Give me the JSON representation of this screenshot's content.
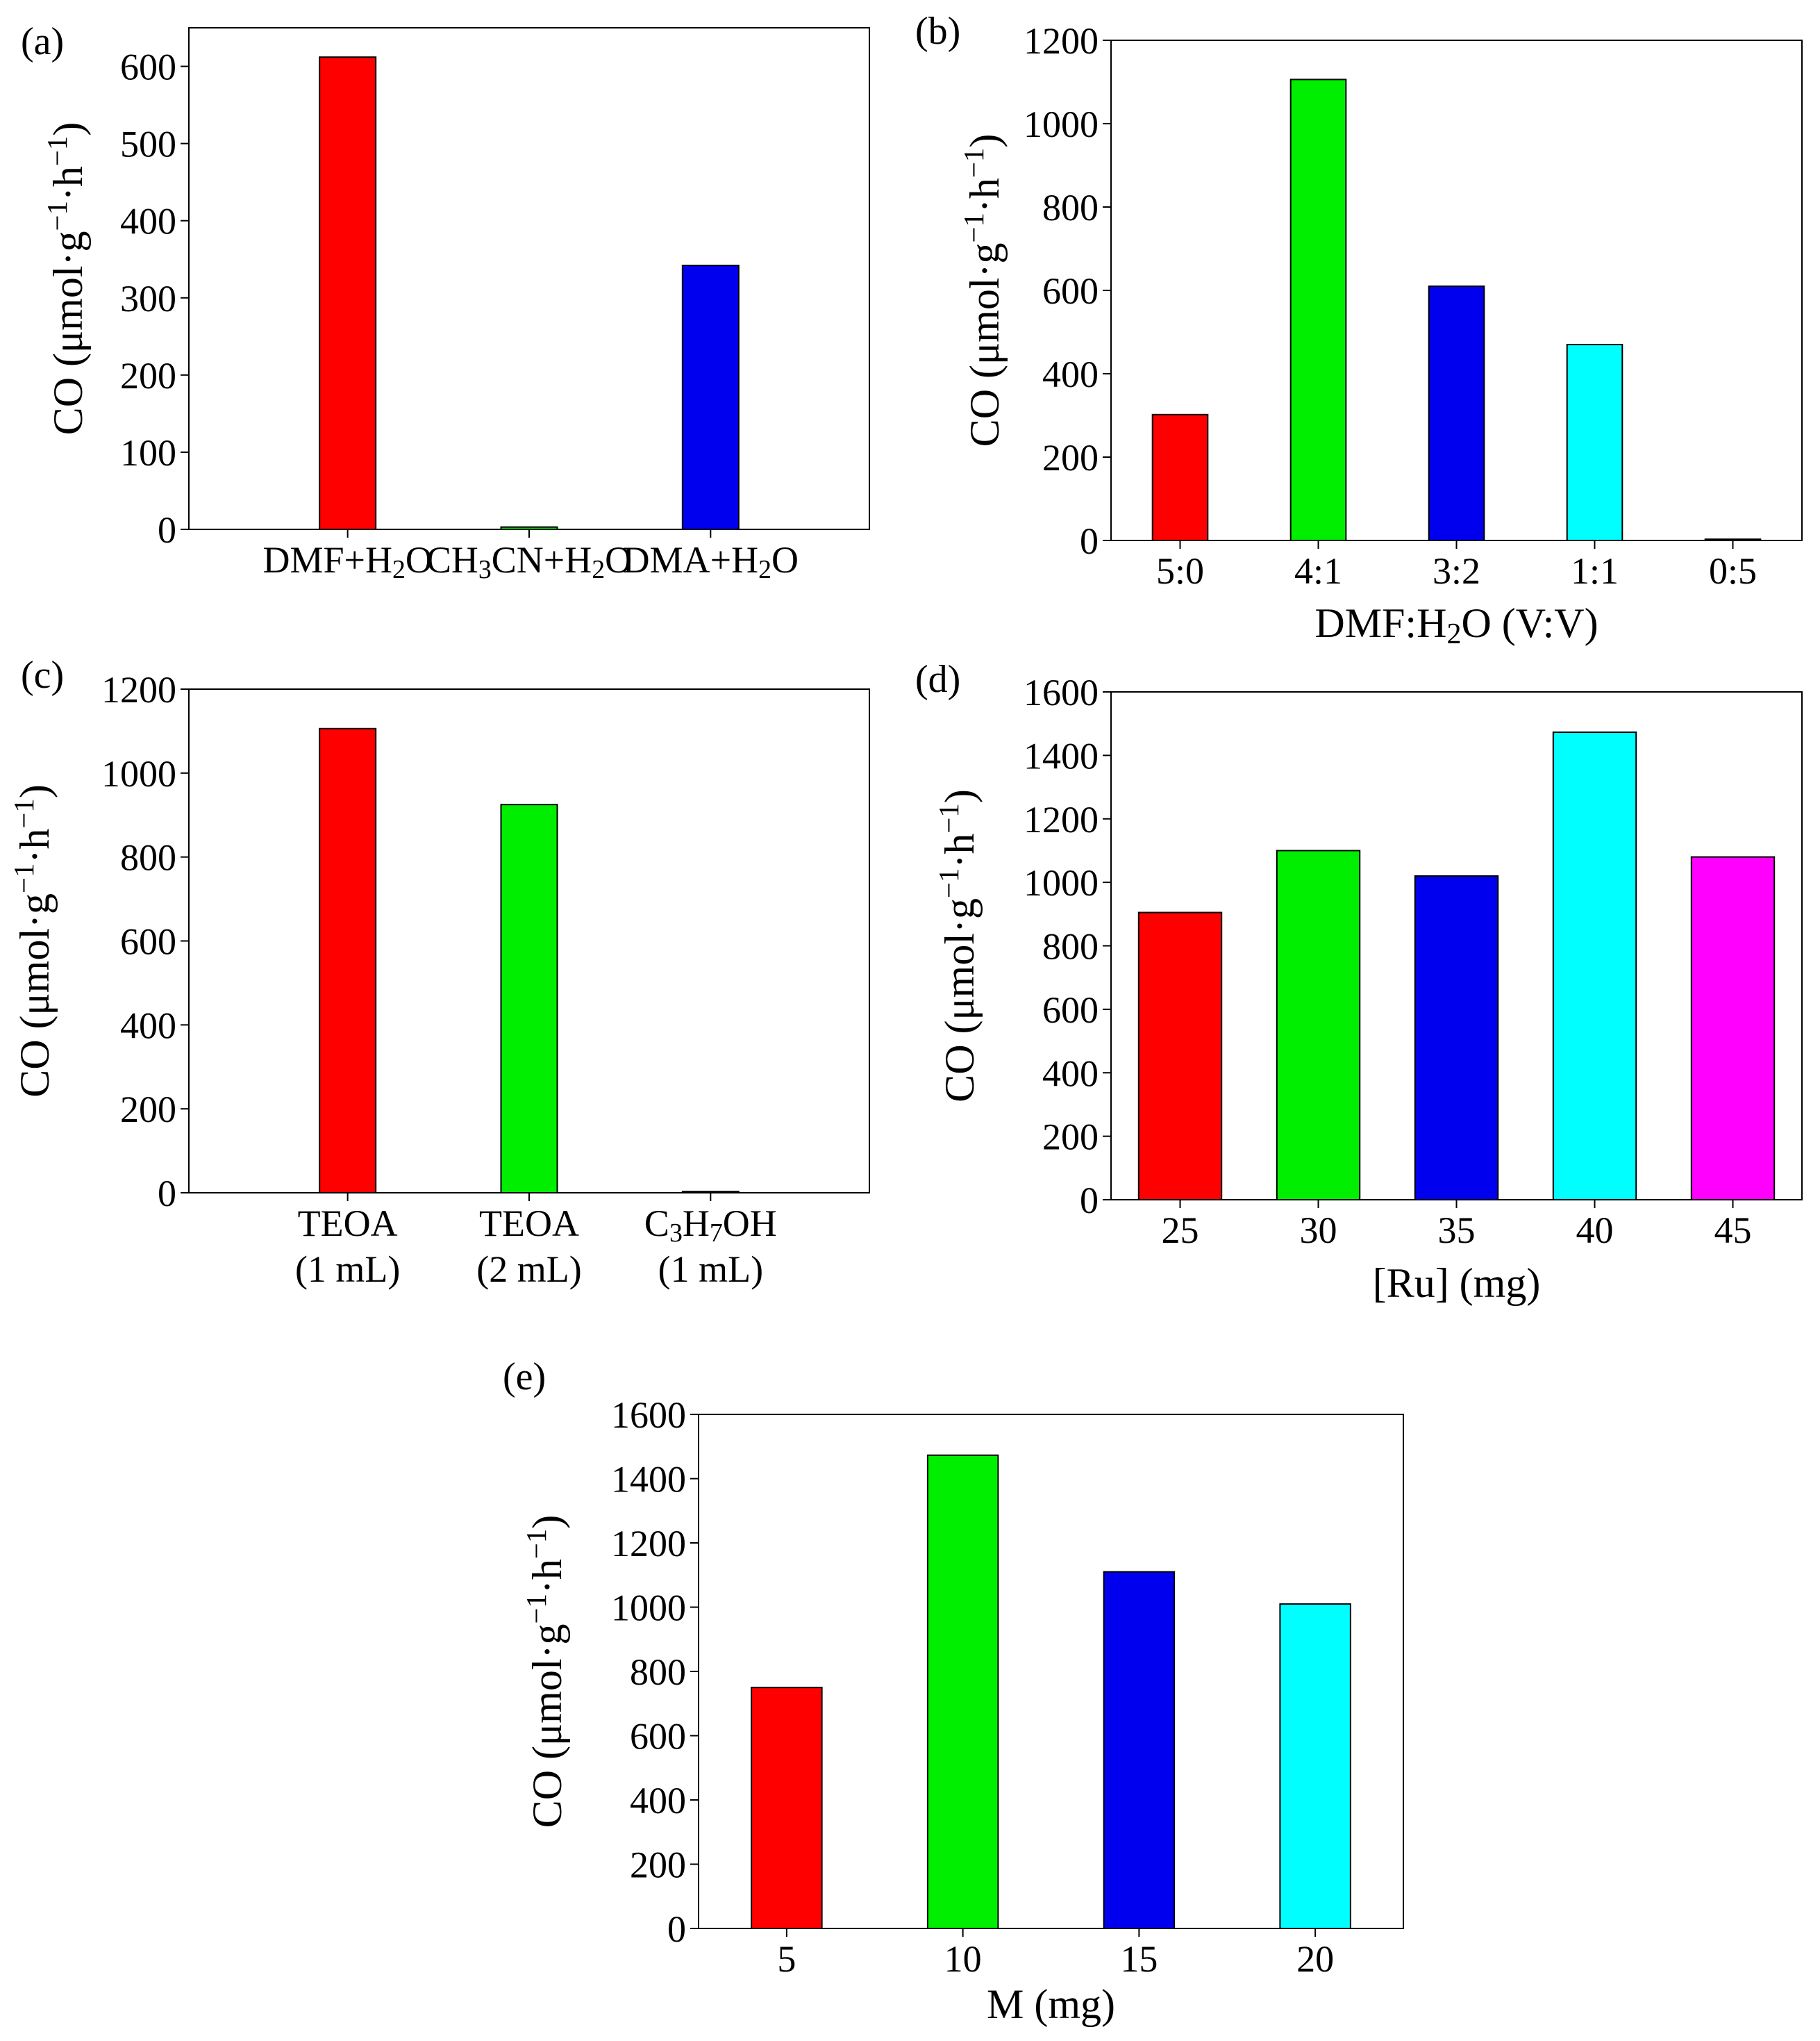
{
  "chart_data": [
    {
      "panel": "(a)",
      "type": "bar",
      "title": "",
      "ylabel": {
        "base": "CO (μmol·g",
        "sup1": "−1",
        "mid": "·h",
        "sup2": "−1",
        "end": ")"
      },
      "xlabel": null,
      "ylim": [
        0,
        650
      ],
      "yticks": [
        0,
        100,
        200,
        300,
        400,
        500,
        600
      ],
      "categories": [
        {
          "lines": [
            [
              {
                "t": "DMF+H"
              },
              {
                "t": "2",
                "sub": true
              },
              {
                "t": "O"
              }
            ]
          ]
        },
        {
          "lines": [
            [
              {
                "t": "CH"
              },
              {
                "t": "3",
                "sub": true
              },
              {
                "t": "CN+H"
              },
              {
                "t": "2",
                "sub": true
              },
              {
                "t": "O"
              }
            ]
          ]
        },
        {
          "lines": [
            [
              {
                "t": "DMA+H"
              },
              {
                "t": "2",
                "sub": true
              },
              {
                "t": "O"
              }
            ]
          ]
        }
      ],
      "values": [
        612,
        3,
        342
      ],
      "colors": [
        "#ff0000",
        "#00ee00",
        "#0000ee"
      ],
      "grid": false
    },
    {
      "panel": "(b)",
      "type": "bar",
      "title": "",
      "ylabel": {
        "base": "CO (μmol·g",
        "sup1": "−1",
        "mid": "·h",
        "sup2": "−1",
        "end": ")"
      },
      "xlabel": [
        {
          "t": "DMF:H"
        },
        {
          "t": "2",
          "sub": true
        },
        {
          "t": "O (V:V)"
        }
      ],
      "ylim": [
        0,
        1200
      ],
      "yticks": [
        0,
        200,
        400,
        600,
        800,
        1000,
        1200
      ],
      "categories": [
        {
          "lines": [
            [
              {
                "t": "5:0"
              }
            ]
          ]
        },
        {
          "lines": [
            [
              {
                "t": "4:1"
              }
            ]
          ]
        },
        {
          "lines": [
            [
              {
                "t": "3:2"
              }
            ]
          ]
        },
        {
          "lines": [
            [
              {
                "t": "1:1"
              }
            ]
          ]
        },
        {
          "lines": [
            [
              {
                "t": "0:5"
              }
            ]
          ]
        }
      ],
      "values": [
        302,
        1106,
        610,
        470,
        3
      ],
      "colors": [
        "#ff0000",
        "#00ee00",
        "#0000ee",
        "#00ffff",
        "#ff00ff"
      ],
      "grid": false
    },
    {
      "panel": "(c)",
      "type": "bar",
      "title": "",
      "ylabel": {
        "base": "CO (μmol·g",
        "sup1": "−1",
        "mid": "·h",
        "sup2": "−1",
        "end": ")"
      },
      "xlabel": null,
      "ylim": [
        0,
        1200
      ],
      "yticks": [
        0,
        200,
        400,
        600,
        800,
        1000,
        1200
      ],
      "categories": [
        {
          "lines": [
            [
              {
                "t": "TEOA"
              }
            ],
            [
              {
                "t": "(1 mL)"
              }
            ]
          ]
        },
        {
          "lines": [
            [
              {
                "t": "TEOA"
              }
            ],
            [
              {
                "t": "(2 mL)"
              }
            ]
          ]
        },
        {
          "lines": [
            [
              {
                "t": "C"
              },
              {
                "t": "3",
                "sub": true
              },
              {
                "t": "H"
              },
              {
                "t": "7",
                "sub": true
              },
              {
                "t": "OH"
              }
            ],
            [
              {
                "t": "(1 mL)"
              }
            ]
          ]
        }
      ],
      "values": [
        1106,
        925,
        3
      ],
      "colors": [
        "#ff0000",
        "#00ee00",
        "#0000ee"
      ],
      "grid": false
    },
    {
      "panel": "(d)",
      "type": "bar",
      "title": "",
      "ylabel": {
        "base": "CO (μmol·g",
        "sup1": "−1",
        "mid": "·h",
        "sup2": "−1",
        "end": ")"
      },
      "xlabel": [
        {
          "t": "[Ru] (mg)"
        }
      ],
      "ylim": [
        0,
        1600
      ],
      "yticks": [
        0,
        200,
        400,
        600,
        800,
        1000,
        1200,
        1400,
        1600
      ],
      "categories": [
        {
          "lines": [
            [
              {
                "t": "25"
              }
            ]
          ]
        },
        {
          "lines": [
            [
              {
                "t": "30"
              }
            ]
          ]
        },
        {
          "lines": [
            [
              {
                "t": "35"
              }
            ]
          ]
        },
        {
          "lines": [
            [
              {
                "t": "40"
              }
            ]
          ]
        },
        {
          "lines": [
            [
              {
                "t": "45"
              }
            ]
          ]
        }
      ],
      "values": [
        905,
        1100,
        1020,
        1473,
        1080
      ],
      "colors": [
        "#ff0000",
        "#00ee00",
        "#0000ee",
        "#00ffff",
        "#ff00ff"
      ],
      "grid": false
    },
    {
      "panel": "(e)",
      "type": "bar",
      "title": "",
      "ylabel": {
        "base": "CO (μmol·g",
        "sup1": "−1",
        "mid": "·h",
        "sup2": "−1",
        "end": ")"
      },
      "xlabel": [
        {
          "t": "M (mg)"
        }
      ],
      "ylim": [
        0,
        1600
      ],
      "yticks": [
        0,
        200,
        400,
        600,
        800,
        1000,
        1200,
        1400,
        1600
      ],
      "categories": [
        {
          "lines": [
            [
              {
                "t": "5"
              }
            ]
          ]
        },
        {
          "lines": [
            [
              {
                "t": "10"
              }
            ]
          ]
        },
        {
          "lines": [
            [
              {
                "t": "15"
              }
            ]
          ]
        },
        {
          "lines": [
            [
              {
                "t": "20"
              }
            ]
          ]
        }
      ],
      "values": [
        750,
        1473,
        1110,
        1010
      ],
      "colors": [
        "#ff0000",
        "#00ee00",
        "#0000ee",
        "#00ffff"
      ],
      "grid": false
    }
  ]
}
